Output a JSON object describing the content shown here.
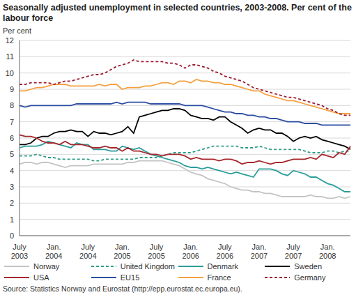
{
  "chart_data": {
    "type": "line",
    "title": "Seasonally adjusted unemployment in selected countries, 2003-2008. Per cent of the labour force",
    "y_label": "Per cent",
    "source": "Source: Statistics Norway and Eurostat (http://epp.eurostat.ec.europa.eu).",
    "categories": [
      "July 2003",
      null,
      null,
      null,
      null,
      null,
      "Jan. 2004",
      null,
      null,
      null,
      null,
      null,
      "July 2004",
      null,
      null,
      null,
      null,
      null,
      "Jan. 2005",
      null,
      null,
      null,
      null,
      null,
      "July 2005",
      null,
      null,
      null,
      null,
      null,
      "Jan. 2006",
      null,
      null,
      null,
      null,
      null,
      "July 2006",
      null,
      null,
      null,
      null,
      null,
      "Jan. 2007",
      null,
      null,
      null,
      null,
      null,
      "July 2007",
      null,
      null,
      null,
      null,
      null,
      "Jan. 2008",
      null,
      null,
      null,
      null
    ],
    "ylim": [
      0,
      12
    ],
    "yticks": [
      0,
      1,
      2,
      3,
      4,
      5,
      6,
      7,
      8,
      9,
      10,
      11,
      12
    ],
    "grid": true,
    "legend": "bottom",
    "series": [
      {
        "name": "Norway",
        "color": "#c4c4c4",
        "values": [
          4.4,
          4.5,
          4.5,
          4.4,
          4.5,
          4.5,
          4.4,
          4.3,
          4.2,
          4.3,
          4.3,
          4.3,
          4.3,
          4.4,
          4.4,
          4.4,
          4.4,
          4.4,
          4.4,
          4.5,
          4.5,
          4.6,
          4.6,
          4.6,
          4.6,
          4.6,
          4.5,
          4.4,
          4.3,
          4.1,
          3.9,
          3.8,
          3.7,
          3.5,
          3.4,
          3.3,
          3.2,
          3.0,
          2.9,
          2.8,
          2.8,
          2.7,
          2.7,
          2.6,
          2.6,
          2.5,
          2.4,
          2.4,
          2.4,
          2.4,
          2.4,
          2.5,
          2.4,
          2.4,
          2.3,
          2.3,
          2.4,
          2.3,
          2.4
        ]
      },
      {
        "name": "United Kingdom",
        "color": "#2e9e86",
        "line_style": "dashed",
        "values": [
          4.9,
          4.9,
          4.9,
          5.0,
          4.9,
          4.8,
          4.8,
          4.7,
          4.7,
          4.7,
          4.7,
          4.7,
          4.7,
          4.6,
          4.6,
          4.7,
          4.7,
          4.7,
          4.7,
          4.7,
          4.7,
          4.8,
          4.8,
          4.8,
          4.8,
          4.9,
          5.0,
          5.1,
          5.1,
          5.1,
          5.1,
          5.2,
          5.3,
          5.4,
          5.5,
          5.5,
          5.5,
          5.5,
          5.5,
          5.4,
          5.4,
          5.4,
          5.5,
          5.4,
          5.3,
          5.3,
          5.3,
          5.3,
          5.3,
          5.3,
          5.2,
          5.1,
          5.1,
          5.1,
          5.2,
          5.2,
          5.1,
          5.2,
          5.2
        ]
      },
      {
        "name": "Denmark",
        "color": "#2a9d9a",
        "values": [
          5.4,
          5.5,
          5.5,
          5.5,
          5.6,
          5.8,
          5.7,
          5.6,
          5.5,
          5.4,
          5.7,
          5.6,
          5.6,
          5.3,
          5.3,
          5.3,
          5.2,
          5.2,
          5.5,
          5.4,
          5.3,
          5.4,
          5.2,
          5.0,
          4.9,
          4.8,
          4.7,
          4.6,
          4.5,
          4.3,
          4.2,
          4.2,
          4.1,
          4.2,
          4.1,
          4.0,
          3.9,
          3.8,
          3.9,
          3.8,
          3.7,
          3.6,
          4.1,
          4.1,
          4.1,
          4.0,
          3.8,
          3.7,
          4.0,
          3.9,
          3.8,
          3.6,
          3.6,
          3.4,
          3.2,
          3.1,
          2.9,
          2.7,
          2.7
        ]
      },
      {
        "name": "Sweden",
        "color": "#000000",
        "values": [
          5.6,
          5.6,
          5.7,
          6.0,
          6.1,
          6.1,
          6.3,
          6.4,
          6.4,
          6.5,
          6.4,
          6.4,
          6.1,
          6.4,
          6.3,
          6.3,
          6.2,
          6.3,
          6.4,
          6.7,
          6.3,
          7.3,
          7.4,
          7.5,
          7.6,
          7.7,
          7.7,
          7.8,
          7.8,
          7.7,
          7.4,
          7.3,
          7.2,
          7.2,
          7.1,
          7.3,
          7.3,
          7.0,
          6.8,
          6.6,
          6.3,
          6.5,
          6.6,
          6.5,
          6.5,
          6.3,
          6.3,
          6.1,
          5.8,
          6.0,
          6.1,
          6.0,
          6.1,
          5.9,
          5.8,
          5.7,
          5.6,
          5.5,
          5.3
        ]
      },
      {
        "name": "USA",
        "color": "#a6262c",
        "values": [
          6.2,
          6.1,
          6.1,
          6.0,
          5.8,
          5.7,
          5.7,
          5.6,
          5.8,
          5.6,
          5.6,
          5.6,
          5.5,
          5.4,
          5.4,
          5.5,
          5.4,
          5.4,
          5.2,
          5.4,
          5.2,
          5.2,
          5.1,
          5.0,
          5.0,
          4.9,
          5.0,
          5.0,
          5.0,
          4.9,
          4.7,
          4.8,
          4.7,
          4.7,
          4.7,
          4.6,
          4.7,
          4.7,
          4.6,
          4.4,
          4.5,
          4.5,
          4.6,
          4.5,
          4.4,
          4.5,
          4.5,
          4.6,
          4.7,
          4.7,
          4.7,
          4.8,
          4.7,
          5.0,
          4.9,
          4.8,
          5.1,
          5.0,
          5.5
        ]
      },
      {
        "name": "EU15",
        "color": "#2b4ea2",
        "values": [
          8.0,
          7.9,
          8.0,
          8.0,
          8.0,
          8.0,
          8.0,
          8.0,
          8.0,
          8.0,
          8.1,
          8.1,
          8.1,
          8.1,
          8.1,
          8.1,
          8.1,
          8.2,
          8.1,
          8.2,
          8.2,
          8.2,
          8.2,
          8.1,
          8.1,
          8.1,
          8.1,
          8.1,
          8.1,
          8.0,
          8.0,
          8.0,
          8.0,
          7.9,
          7.8,
          7.7,
          7.6,
          7.6,
          7.5,
          7.5,
          7.4,
          7.4,
          7.3,
          7.3,
          7.2,
          7.2,
          7.1,
          7.0,
          7.0,
          7.0,
          6.9,
          6.9,
          6.9,
          6.8,
          6.8,
          6.8,
          6.8,
          6.8,
          6.8
        ]
      },
      {
        "name": "France",
        "color": "#f5a040",
        "values": [
          8.9,
          8.9,
          9.0,
          9.1,
          9.1,
          9.2,
          9.3,
          9.3,
          9.3,
          9.2,
          9.2,
          9.2,
          9.2,
          9.2,
          9.3,
          9.2,
          9.3,
          9.3,
          9.0,
          9.1,
          9.1,
          9.1,
          9.2,
          9.2,
          9.3,
          9.4,
          9.4,
          9.3,
          9.5,
          9.5,
          9.4,
          9.6,
          9.5,
          9.5,
          9.4,
          9.4,
          9.3,
          9.3,
          9.2,
          9.1,
          9.0,
          8.9,
          8.9,
          8.7,
          8.6,
          8.5,
          8.4,
          8.3,
          8.3,
          8.2,
          8.1,
          8.0,
          7.9,
          7.8,
          7.7,
          7.6,
          7.5,
          7.5,
          7.5
        ]
      },
      {
        "name": "Germany",
        "color": "#9b1b30",
        "line_style": "dashed",
        "values": [
          9.3,
          9.3,
          9.4,
          9.4,
          9.4,
          9.4,
          9.3,
          9.4,
          9.5,
          9.5,
          9.6,
          9.7,
          9.8,
          9.9,
          9.9,
          10.0,
          10.2,
          10.4,
          10.5,
          10.6,
          10.8,
          10.7,
          10.7,
          10.7,
          10.7,
          10.7,
          10.6,
          10.6,
          10.5,
          10.3,
          10.5,
          10.5,
          10.4,
          10.3,
          10.1,
          10.0,
          9.8,
          9.7,
          9.6,
          9.5,
          9.3,
          9.1,
          9.0,
          8.9,
          8.8,
          8.7,
          8.6,
          8.5,
          8.5,
          8.4,
          8.3,
          8.2,
          8.1,
          8.0,
          7.8,
          7.7,
          7.5,
          7.4,
          7.4
        ]
      }
    ]
  }
}
